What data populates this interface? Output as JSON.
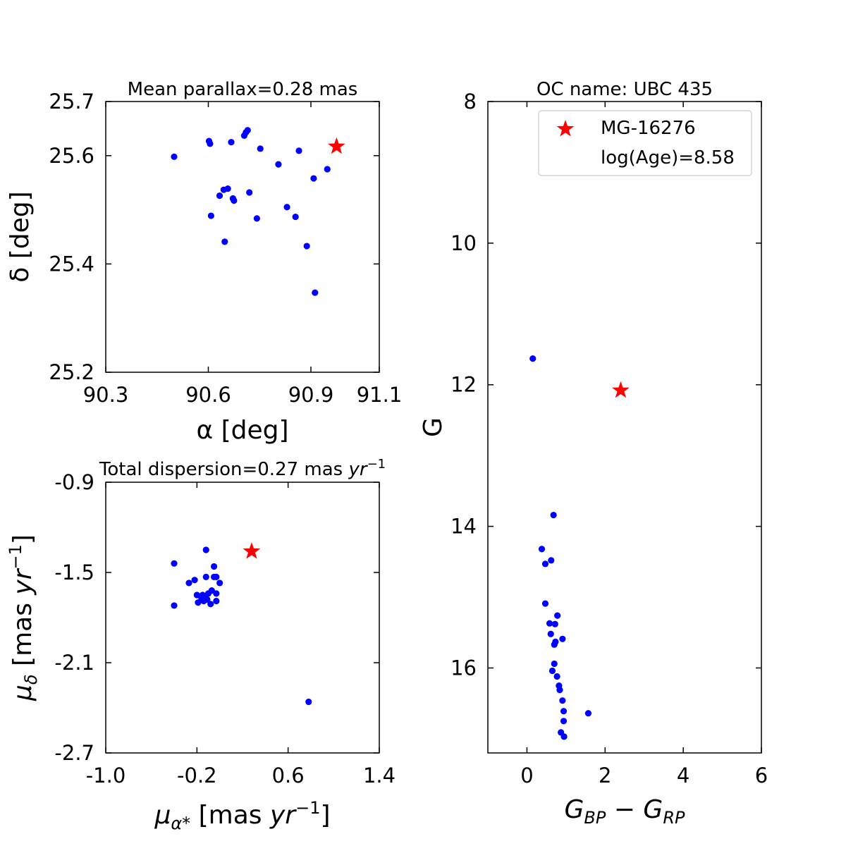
{
  "colors": {
    "member": "#0000ff",
    "target": "#ff0000",
    "axis": "#000000"
  },
  "chart_data": [
    {
      "type": "scatter",
      "panel": "sky-position",
      "title": "Mean parallax=0.28 mas",
      "xlabel": "α [deg]",
      "ylabel": "δ [deg]",
      "xlim": [
        90.3,
        91.1
      ],
      "ylim": [
        25.2,
        25.7
      ],
      "xticks": [
        90.3,
        90.6,
        90.9,
        91.1
      ],
      "yticks": [
        25.2,
        25.4,
        25.6,
        25.7
      ],
      "xtick_labels": [
        "90.3",
        "90.6",
        "90.9",
        "91.1"
      ],
      "ytick_labels": [
        "25.2",
        "25.4",
        "25.6",
        "25.7"
      ],
      "series": [
        {
          "name": "members",
          "marker": "dot",
          "x": [
            90.5,
            90.602,
            90.605,
            90.667,
            90.71,
            90.715,
            90.705,
            90.752,
            90.805,
            90.865,
            90.948,
            90.908,
            90.608,
            90.657,
            90.645,
            90.633,
            90.672,
            90.675,
            90.72,
            90.742,
            90.83,
            90.855,
            90.888,
            90.648,
            90.912
          ],
          "y": [
            25.598,
            25.627,
            25.622,
            25.625,
            25.643,
            25.647,
            25.637,
            25.613,
            25.584,
            25.609,
            25.575,
            25.558,
            25.489,
            25.539,
            25.537,
            25.526,
            25.521,
            25.517,
            25.532,
            25.484,
            25.505,
            25.487,
            25.433,
            25.441,
            25.347
          ]
        },
        {
          "name": "MG-16276",
          "marker": "star",
          "x": [
            90.975
          ],
          "y": [
            25.617
          ]
        }
      ]
    },
    {
      "type": "scatter",
      "panel": "proper-motion",
      "title": "Total dispersion=0.27 mas yr⁻¹",
      "xlabel": "μα* [mas yr⁻¹]",
      "ylabel": "μδ [mas yr⁻¹]",
      "xlim": [
        -1.0,
        1.4
      ],
      "ylim": [
        -2.7,
        -0.9
      ],
      "xticks": [
        -1.0,
        -0.2,
        0.6,
        1.4
      ],
      "yticks": [
        -2.7,
        -2.1,
        -1.5,
        -0.9
      ],
      "xtick_labels": [
        "-1.0",
        "-0.2",
        "0.6",
        "1.4"
      ],
      "ytick_labels": [
        "-2.7",
        "-2.1",
        "-1.5",
        "-0.9"
      ],
      "series": [
        {
          "name": "members",
          "marker": "dot",
          "x": [
            -0.4,
            -0.4,
            -0.12,
            -0.05,
            -0.03,
            -0.22,
            -0.27,
            -0.2,
            -0.19,
            -0.15,
            -0.13,
            -0.11,
            -0.1,
            -0.12,
            -0.08,
            -0.16,
            -0.14,
            -0.05,
            -0.03,
            0.0,
            -0.03,
            -0.07,
            0.78
          ],
          "y": [
            -1.44,
            -1.72,
            -1.35,
            -1.46,
            -1.53,
            -1.55,
            -1.57,
            -1.65,
            -1.7,
            -1.65,
            -1.67,
            -1.68,
            -1.64,
            -1.53,
            -1.71,
            -1.67,
            -1.69,
            -1.53,
            -1.64,
            -1.57,
            -1.69,
            -1.62,
            -2.36
          ]
        },
        {
          "name": "MG-16276",
          "marker": "star",
          "x": [
            0.28
          ],
          "y": [
            -1.36
          ]
        }
      ]
    },
    {
      "type": "scatter",
      "panel": "color-magnitude",
      "title": "OC name: UBC 435",
      "xlabel": "G_BP − G_RP",
      "ylabel": "G",
      "xlim": [
        -1,
        6
      ],
      "ylim": [
        17.2,
        8
      ],
      "y_inverted": true,
      "xticks": [
        0,
        2,
        4,
        6
      ],
      "yticks": [
        8,
        10,
        12,
        14,
        16
      ],
      "xtick_labels": [
        "0",
        "2",
        "4",
        "6"
      ],
      "ytick_labels": [
        "8",
        "10",
        "12",
        "14",
        "16"
      ],
      "legend": {
        "position": "top-right",
        "entries": [
          "MG-16276",
          "log(Age)=8.58"
        ]
      },
      "series": [
        {
          "name": "members",
          "marker": "dot",
          "x": [
            0.15,
            0.68,
            0.38,
            0.47,
            0.62,
            0.47,
            0.58,
            0.78,
            0.72,
            0.61,
            0.91,
            0.73,
            0.7,
            0.7,
            0.65,
            0.77,
            0.82,
            0.84,
            0.91,
            0.94,
            1.57,
            0.94,
            0.87,
            0.95
          ],
          "y": [
            11.63,
            13.84,
            14.32,
            14.53,
            14.48,
            15.09,
            15.37,
            15.26,
            15.38,
            15.52,
            15.59,
            15.63,
            15.67,
            15.94,
            16.04,
            16.12,
            16.25,
            16.31,
            16.46,
            16.61,
            16.64,
            16.75,
            16.91,
            16.97
          ]
        },
        {
          "name": "MG-16276",
          "marker": "star",
          "x": [
            2.4
          ],
          "y": [
            12.08
          ]
        }
      ]
    }
  ]
}
